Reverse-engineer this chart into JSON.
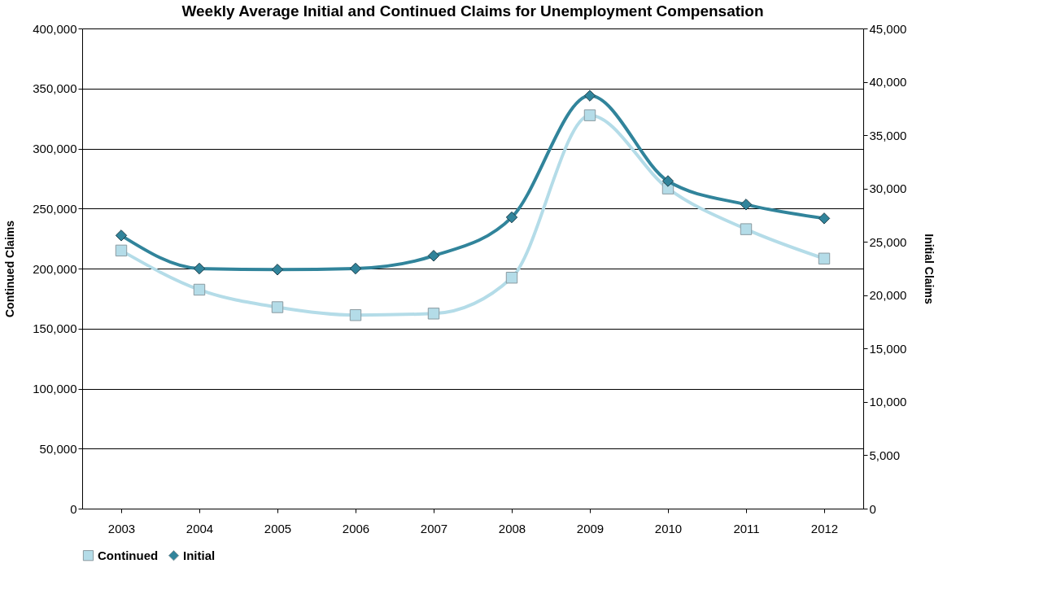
{
  "chart_data": {
    "type": "line",
    "title": "Weekly Average Initial and Continued Claims for Unemployment Compensation",
    "ylabel": "Continued Claims",
    "y2label": "Initial Claims",
    "categories": [
      "2003",
      "2004",
      "2005",
      "2006",
      "2007",
      "2008",
      "2009",
      "2010",
      "2011",
      "2012"
    ],
    "series": [
      {
        "name": "Continued",
        "color": "#b4dce8",
        "marker": "square",
        "values": [
          215000,
          182400,
          167800,
          161200,
          162500,
          192400,
          327700,
          266700,
          232800,
          208300
        ]
      },
      {
        "name": "Initial",
        "color": "#31849b",
        "marker": "diamond",
        "axis": "y2",
        "values": [
          25600,
          22500,
          22400,
          22500,
          23700,
          27300,
          38700,
          30700,
          28500,
          27200
        ]
      }
    ],
    "ylim": [
      0,
      400000
    ],
    "yticks": [
      0,
      {
        "value": 50000,
        "label": "50,000"
      },
      {
        "value": 100000,
        "label": "100,000"
      },
      {
        "value": 150000,
        "label": "150,000"
      },
      {
        "value": 200000,
        "label": "200,000"
      },
      {
        "value": 250000,
        "label": "250,000"
      },
      {
        "value": 300000,
        "label": "300,000"
      },
      {
        "value": 350000,
        "label": "350,000"
      },
      {
        "value": 400000,
        "label": "400,000"
      }
    ],
    "y2lim": [
      0,
      45000
    ],
    "y2ticks": [
      0,
      {
        "value": 5000,
        "label": "5,000"
      },
      {
        "value": 10000,
        "label": "10,000"
      },
      {
        "value": 15000,
        "label": "15,000"
      },
      {
        "value": 20000,
        "label": "20,000"
      },
      {
        "value": 25000,
        "label": "25,000"
      },
      {
        "value": 30000,
        "label": "30,000"
      },
      {
        "value": 35000,
        "label": "35,000"
      },
      {
        "value": 40000,
        "label": "40,000"
      },
      {
        "value": 45000,
        "label": "45,000"
      }
    ],
    "grid": "y",
    "legend": "bottom",
    "line_style": "solid"
  }
}
